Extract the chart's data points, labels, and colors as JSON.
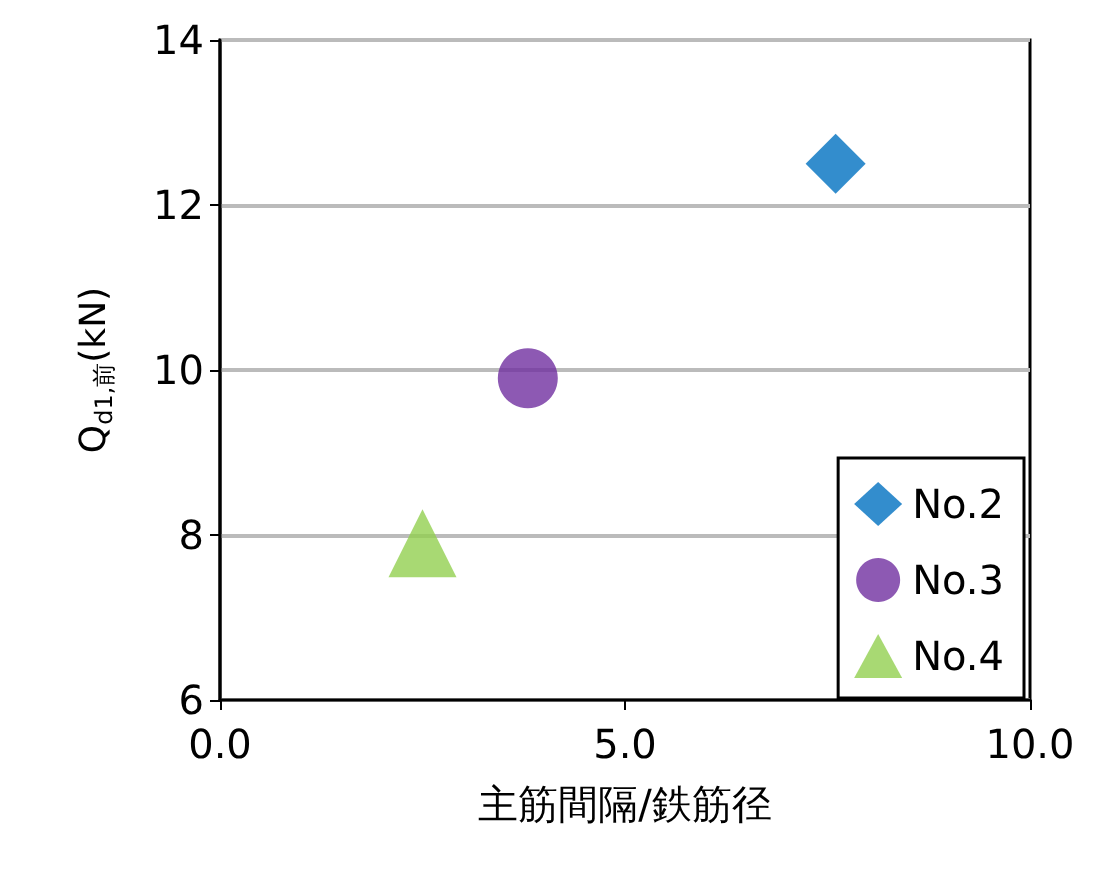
{
  "chart_data": {
    "type": "scatter",
    "xlabel": "主筋間隔/鉄筋径",
    "ylabel": "Q$_{d1,前}$(kN)",
    "xlim": [
      0,
      10
    ],
    "xticks": [
      {
        "value": 0,
        "label": "0.0"
      },
      {
        "value": 5,
        "label": "5.0"
      },
      {
        "value": 10,
        "label": "10.0"
      }
    ],
    "ylim": [
      6,
      14
    ],
    "yticks": [
      6,
      8,
      10,
      12,
      14
    ],
    "grid": "y",
    "legend": "bottom right",
    "series": [
      {
        "name": "No.2",
        "color": "#0070c0",
        "marker": "diamond",
        "x": [
          7.6
        ],
        "values": [
          12.5
        ]
      },
      {
        "name": "No.3",
        "color": "#7030a0",
        "marker": "circle",
        "x": [
          3.8
        ],
        "values": [
          9.9
        ]
      },
      {
        "name": "No.4",
        "color": "#92d050",
        "marker": "triangle",
        "x": [
          2.5
        ],
        "values": [
          7.9
        ]
      }
    ]
  }
}
